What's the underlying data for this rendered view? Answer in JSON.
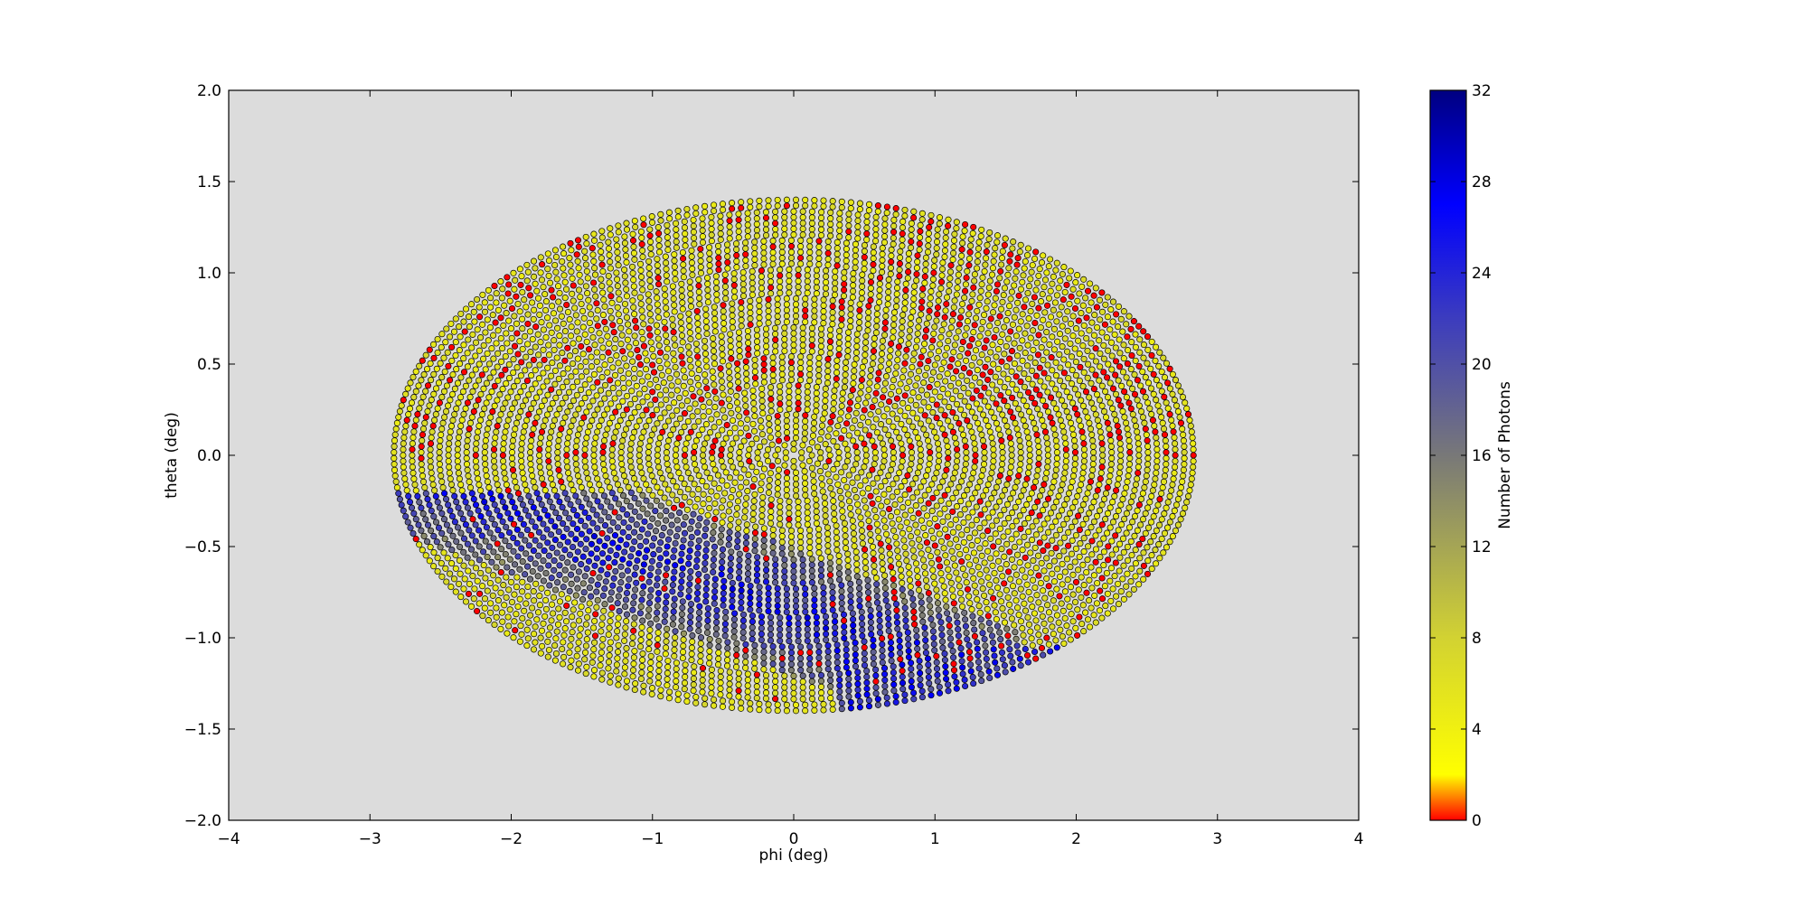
{
  "chart_data": {
    "type": "scatter",
    "title": "",
    "xlabel": "phi (deg)",
    "ylabel": "theta (deg)",
    "xlim": [
      -4,
      4
    ],
    "ylim": [
      -2,
      2
    ],
    "x_ticks": [
      -4,
      -3,
      -2,
      -1,
      0,
      1,
      2,
      3,
      4
    ],
    "x_tick_labels": [
      "−4",
      "−3",
      "−2",
      "−1",
      "0",
      "1",
      "2",
      "3",
      "4"
    ],
    "y_ticks": [
      -2.0,
      -1.5,
      -1.0,
      -0.5,
      0.0,
      0.5,
      1.0,
      1.5,
      2.0
    ],
    "y_tick_labels": [
      "−2.0",
      "−1.5",
      "−1.0",
      "−0.5",
      "0.0",
      "0.5",
      "1.0",
      "1.5",
      "2.0"
    ],
    "grid": false,
    "axes_background": "#dcdcdc",
    "point_edge_color": "#000000",
    "footprint": {
      "shape": "ellipse",
      "phi_half_width_deg": 2.83,
      "theta_half_height_deg": 1.4
    },
    "points_note_color_field": "Number of Photons",
    "colorbar": {
      "label": "Number of Photons",
      "range": [
        0,
        32
      ],
      "ticks": [
        0,
        4,
        8,
        12,
        16,
        20,
        24,
        28,
        32
      ],
      "tick_labels": [
        "0",
        "4",
        "8",
        "12",
        "16",
        "20",
        "24",
        "28",
        "32"
      ],
      "colors": [
        {
          "value": 0,
          "color": "#ff0000"
        },
        {
          "value": 2,
          "color": "#ffff00"
        },
        {
          "value": 8,
          "color": "#d2d232"
        },
        {
          "value": 16,
          "color": "#787878"
        },
        {
          "value": 22,
          "color": "#3c3cbe"
        },
        {
          "value": 27,
          "color": "#0000ff"
        },
        {
          "value": 32,
          "color": "#000080"
        }
      ]
    },
    "regions": {
      "base_photons": 6,
      "hot_band_photons": 25,
      "sparse_photons": 0
    }
  }
}
